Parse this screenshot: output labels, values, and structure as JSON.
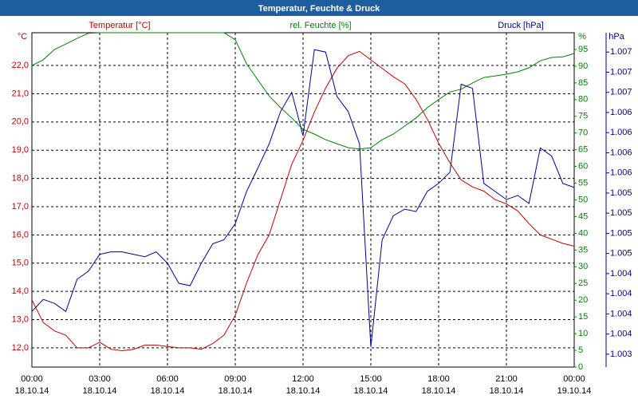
{
  "chart_data": {
    "type": "line",
    "title": "Temperatur, Feuchte & Druck",
    "y_unit": "°C",
    "y2_unit": "%",
    "y3_unit": "hPa",
    "x": [
      0,
      0.5,
      1,
      1.5,
      2,
      2.5,
      3,
      3.5,
      4,
      4.5,
      5,
      5.5,
      6,
      6.5,
      7,
      7.5,
      8,
      8.5,
      9,
      9.5,
      10,
      10.5,
      11,
      11.5,
      12,
      12.5,
      13,
      13.5,
      14,
      14.5,
      15,
      15.5,
      16,
      16.5,
      17,
      17.5,
      18,
      18.5,
      19,
      19.5,
      20,
      20.5,
      21,
      21.5,
      22,
      22.5,
      23,
      23.5,
      24
    ],
    "xlim": [
      0,
      24
    ],
    "xticks": [
      {
        "value": 0,
        "label": "00:00",
        "date": "18.10.14"
      },
      {
        "value": 3,
        "label": "03:00",
        "date": "18.10.14"
      },
      {
        "value": 6,
        "label": "06:00",
        "date": "18.10.14"
      },
      {
        "value": 9,
        "label": "09:00",
        "date": "18.10.14"
      },
      {
        "value": 12,
        "label": "12:00",
        "date": "18.10.14"
      },
      {
        "value": 15,
        "label": "15:00",
        "date": "18.10.14"
      },
      {
        "value": 18,
        "label": "18:00",
        "date": "18.10.14"
      },
      {
        "value": 21,
        "label": "21:00",
        "date": "18.10.14"
      },
      {
        "value": 24,
        "label": "00:00",
        "date": "19.10.14"
      }
    ],
    "ylim": [
      11.32,
      23.16
    ],
    "yticks": [
      {
        "value": 12,
        "label": "12,0"
      },
      {
        "value": 13,
        "label": "13,0"
      },
      {
        "value": 14,
        "label": "14,0"
      },
      {
        "value": 15,
        "label": "15,0"
      },
      {
        "value": 16,
        "label": "16,0"
      },
      {
        "value": 17,
        "label": "17,0"
      },
      {
        "value": 18,
        "label": "18,0"
      },
      {
        "value": 19,
        "label": "19,0"
      },
      {
        "value": 20,
        "label": "20,0"
      },
      {
        "value": 21,
        "label": "21,0"
      },
      {
        "value": 22,
        "label": "22,0"
      }
    ],
    "y2lim": [
      0,
      100
    ],
    "y2ticks": [
      0,
      5,
      10,
      15,
      20,
      25,
      30,
      35,
      40,
      45,
      50,
      55,
      60,
      65,
      70,
      75,
      80,
      85,
      90,
      95
    ],
    "y3lim": [
      1003.14,
      1007.29
    ],
    "y3ticks": [
      {
        "value": 1003.3,
        "label": "1.003"
      },
      {
        "value": 1003.55,
        "label": "1.004"
      },
      {
        "value": 1003.8,
        "label": "1.004"
      },
      {
        "value": 1004.05,
        "label": "1.004"
      },
      {
        "value": 1004.3,
        "label": "1.004"
      },
      {
        "value": 1004.55,
        "label": "1.005"
      },
      {
        "value": 1004.8,
        "label": "1.005"
      },
      {
        "value": 1005.05,
        "label": "1.005"
      },
      {
        "value": 1005.3,
        "label": "1.005"
      },
      {
        "value": 1005.55,
        "label": "1.006"
      },
      {
        "value": 1005.8,
        "label": "1.006"
      },
      {
        "value": 1006.05,
        "label": "1.006"
      },
      {
        "value": 1006.3,
        "label": "1.006"
      },
      {
        "value": 1006.55,
        "label": "1.007"
      },
      {
        "value": 1006.8,
        "label": "1.007"
      },
      {
        "value": 1007.05,
        "label": "1.007"
      }
    ],
    "grid": true,
    "series": [
      {
        "name": "Temperatur [°C]",
        "color": "#c00000",
        "axis": "y",
        "values": [
          13.7,
          12.9,
          12.6,
          12.45,
          12.0,
          12.0,
          12.2,
          11.95,
          11.9,
          11.95,
          12.1,
          12.1,
          12.05,
          12.0,
          12.0,
          11.95,
          12.15,
          12.45,
          13.15,
          14.3,
          15.3,
          16.0,
          17.25,
          18.5,
          19.35,
          20.35,
          21.2,
          21.9,
          22.35,
          22.5,
          22.2,
          21.9,
          21.6,
          21.35,
          20.8,
          20.1,
          19.25,
          18.55,
          17.95,
          17.7,
          17.55,
          17.25,
          17.1,
          16.85,
          16.4,
          16.0,
          15.85,
          15.7,
          15.6
        ]
      },
      {
        "name": "rel. Feuchte [%]",
        "color": "#008000",
        "axis": "y2",
        "values": [
          90.2,
          91.9,
          95,
          96.6,
          98.3,
          99.8,
          100,
          100,
          100,
          100,
          100,
          100,
          100,
          100,
          100,
          100,
          100,
          100,
          97.9,
          90.7,
          85.9,
          81.1,
          77.6,
          74.5,
          71.1,
          69.7,
          68,
          66.8,
          65.6,
          65.2,
          65.6,
          68,
          69.7,
          72.1,
          74.5,
          77.6,
          80,
          82.3,
          83.1,
          85,
          86.6,
          87.1,
          87.6,
          88.3,
          89.5,
          91.6,
          92.6,
          92.8,
          93.8
        ]
      },
      {
        "name": "Druck [hPa]",
        "color": "#000090",
        "axis": "y3",
        "values": [
          1003.83,
          1003.98,
          1003.93,
          1003.83,
          1004.23,
          1004.33,
          1004.54,
          1004.57,
          1004.57,
          1004.54,
          1004.51,
          1004.57,
          1004.43,
          1004.18,
          1004.15,
          1004.43,
          1004.67,
          1004.72,
          1004.92,
          1005.32,
          1005.61,
          1005.91,
          1006.31,
          1006.55,
          1006.01,
          1007.08,
          1007.05,
          1006.5,
          1006.31,
          1005.91,
          1003.39,
          1004.72,
          1005.02,
          1005.1,
          1005.07,
          1005.32,
          1005.42,
          1005.56,
          1006.65,
          1006.6,
          1005.42,
          1005.32,
          1005.22,
          1005.27,
          1005.17,
          1005.86,
          1005.76,
          1005.42,
          1005.37
        ]
      }
    ]
  }
}
